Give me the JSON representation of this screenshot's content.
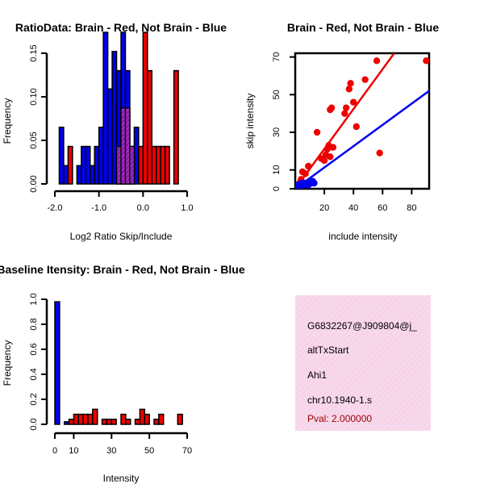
{
  "chart_data": [
    {
      "type": "bar",
      "title": "RatioData: Brain - Red, Not Brain - Blue",
      "xlabel": "Log2 Ratio Skip/Include",
      "ylabel": "Frequency",
      "xlim": [
        -2.0,
        1.0
      ],
      "ylim": [
        0,
        0.15
      ],
      "xticks": [
        "-2.0",
        "-1.0",
        "0.0",
        "1.0"
      ],
      "yticks": [
        "0.00",
        "0.05",
        "0.10",
        "0.15"
      ],
      "bin_width": 0.1,
      "series": [
        {
          "name": "Not Brain",
          "color": "#0000ee",
          "bins": [
            {
              "start": -1.9,
              "value": 0.065
            },
            {
              "start": -1.8,
              "value": 0.021
            },
            {
              "start": -1.5,
              "value": 0.021
            },
            {
              "start": -1.4,
              "value": 0.043
            },
            {
              "start": -1.3,
              "value": 0.043
            },
            {
              "start": -1.2,
              "value": 0.021
            },
            {
              "start": -1.1,
              "value": 0.043
            },
            {
              "start": -1.0,
              "value": 0.065
            },
            {
              "start": -0.9,
              "value": 0.174
            },
            {
              "start": -0.8,
              "value": 0.109
            },
            {
              "start": -0.7,
              "value": 0.152
            },
            {
              "start": -0.6,
              "value": 0.13
            },
            {
              "start": -0.5,
              "value": 0.174
            },
            {
              "start": -0.4,
              "value": 0.13
            },
            {
              "start": -0.3,
              "value": 0.043
            },
            {
              "start": -0.2,
              "value": 0.065
            }
          ]
        },
        {
          "name": "Brain",
          "color": "#ee0000",
          "bins": [
            {
              "start": -1.7,
              "value": 0.043
            },
            {
              "start": -0.6,
              "value": 0.043
            },
            {
              "start": -0.5,
              "value": 0.087
            },
            {
              "start": -0.4,
              "value": 0.087
            },
            {
              "start": -0.3,
              "value": 0.043
            },
            {
              "start": -0.1,
              "value": 0.043
            },
            {
              "start": 0.0,
              "value": 0.174
            },
            {
              "start": 0.1,
              "value": 0.13
            },
            {
              "start": 0.2,
              "value": 0.043
            },
            {
              "start": 0.3,
              "value": 0.043
            },
            {
              "start": 0.4,
              "value": 0.043
            },
            {
              "start": 0.5,
              "value": 0.043
            },
            {
              "start": 0.7,
              "value": 0.13
            }
          ]
        }
      ]
    },
    {
      "type": "scatter",
      "title": "Brain - Red, Not Brain - Blue",
      "xlabel": "include intensity",
      "ylabel": "skip intensity",
      "xlim": [
        0,
        92
      ],
      "ylim": [
        0,
        72
      ],
      "xticks": [
        20,
        40,
        60,
        80
      ],
      "yticks": [
        0,
        10,
        30,
        50,
        70
      ],
      "series": [
        {
          "name": "Brain",
          "color": "#ee0000",
          "points": [
            [
              2,
              2
            ],
            [
              3,
              3
            ],
            [
              4,
              5
            ],
            [
              5,
              9
            ],
            [
              7,
              8
            ],
            [
              9,
              12
            ],
            [
              15,
              30
            ],
            [
              18,
              16
            ],
            [
              20,
              15
            ],
            [
              21,
              18
            ],
            [
              22,
              21
            ],
            [
              23,
              23
            ],
            [
              24,
              17
            ],
            [
              24,
              42
            ],
            [
              25,
              43
            ],
            [
              26,
              22
            ],
            [
              34,
              40
            ],
            [
              35,
              43
            ],
            [
              37,
              53
            ],
            [
              38,
              56
            ],
            [
              40,
              46
            ],
            [
              42,
              33
            ],
            [
              48,
              58
            ],
            [
              56,
              68
            ],
            [
              58,
              19
            ],
            [
              90,
              68
            ]
          ],
          "fit": [
            [
              0,
              0
            ],
            [
              68,
              72
            ]
          ]
        },
        {
          "name": "Not Brain",
          "color": "#0000ee",
          "points": [
            [
              1,
              1
            ],
            [
              2,
              2
            ],
            [
              3,
              1
            ],
            [
              4,
              3
            ],
            [
              5,
              2
            ],
            [
              6,
              3
            ],
            [
              7,
              2
            ],
            [
              8,
              3
            ],
            [
              9,
              2
            ],
            [
              10,
              3
            ],
            [
              11,
              3
            ],
            [
              12,
              4
            ],
            [
              13,
              3
            ]
          ],
          "fit": [
            [
              0,
              0
            ],
            [
              92,
              52
            ]
          ]
        }
      ]
    },
    {
      "type": "bar",
      "title": "Baseline Itensity: Brain - Red, Not Brain - Blue",
      "xlabel": "Intensity",
      "ylabel": "Frequency",
      "xlim": [
        0,
        70
      ],
      "ylim": [
        0,
        1.0
      ],
      "xticks": [
        "0",
        "10",
        "30",
        "50",
        "70"
      ],
      "yticks": [
        "0.0",
        "0.2",
        "0.4",
        "0.6",
        "0.8",
        "1.0"
      ],
      "bin_width": 2.5,
      "series": [
        {
          "name": "Not Brain",
          "color": "#0000ee",
          "bins": [
            {
              "start": 0,
              "value": 0.98
            },
            {
              "start": 5,
              "value": 0.02
            }
          ]
        },
        {
          "name": "Brain",
          "color": "#ee0000",
          "bins": [
            {
              "start": 7.5,
              "value": 0.04
            },
            {
              "start": 10,
              "value": 0.08
            },
            {
              "start": 12.5,
              "value": 0.08
            },
            {
              "start": 15,
              "value": 0.08
            },
            {
              "start": 17.5,
              "value": 0.08
            },
            {
              "start": 20,
              "value": 0.12
            },
            {
              "start": 25,
              "value": 0.04
            },
            {
              "start": 27.5,
              "value": 0.04
            },
            {
              "start": 30,
              "value": 0.04
            },
            {
              "start": 35,
              "value": 0.08
            },
            {
              "start": 37.5,
              "value": 0.04
            },
            {
              "start": 42.5,
              "value": 0.04
            },
            {
              "start": 45,
              "value": 0.12
            },
            {
              "start": 47.5,
              "value": 0.08
            },
            {
              "start": 52.5,
              "value": 0.04
            },
            {
              "start": 55,
              "value": 0.08
            },
            {
              "start": 65,
              "value": 0.08
            }
          ]
        }
      ]
    }
  ],
  "info_box": {
    "gene_id": "G6832267@J909804@j_",
    "event_type": "altTxStart",
    "gene_name": "Ahi1",
    "probe": "chr10.1940-1.s",
    "pval": "Pval: 2.000000",
    "background": "#f8d8ec",
    "pval_color": "#990000"
  }
}
